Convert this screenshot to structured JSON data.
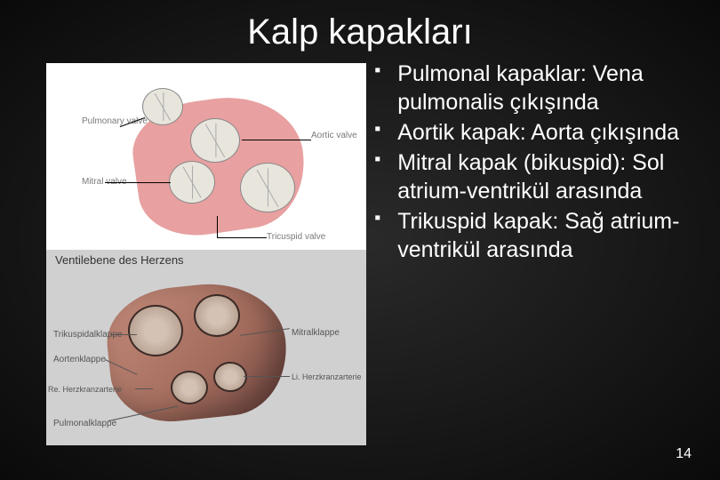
{
  "title": "Kalp kapakları",
  "bullets": [
    "Pulmonal kapaklar: Vena pulmonalis çıkışında",
    "Aortik kapak: Aorta çıkışında",
    "Mitral kapak (bikuspid): Sol atrium-ventrikül arasında",
    "Trikuspid kapak: Sağ atrium-ventrikül arasında"
  ],
  "page_number": "14",
  "top_diagram": {
    "labels": {
      "pulmonary": "Pulmonary valve",
      "aortic": "Aortic valve",
      "mitral": "Mitral valve",
      "tricuspid": "Tricuspid valve"
    },
    "colors": {
      "heart_fill": "#e8a0a0",
      "valve_fill": "#e8e5dd",
      "bg": "#ffffff"
    }
  },
  "bottom_diagram": {
    "title": "Ventilebene des Herzens",
    "labels": {
      "trikuspidal": "Trikuspidalklappe",
      "aorten": "Aortenklappe",
      "re_kranz": "Re. Herzkranzarterie",
      "pulmonal": "Pulmonalklappe",
      "mitral": "Mitralklappe",
      "li_kranz": "Li. Herzkranzarterie"
    },
    "colors": {
      "bg": "#d0d0d0",
      "heart_fill": "#a26b5c"
    }
  },
  "theme": {
    "background": "radial-gradient(#2a2a2a,#0a0a0a)",
    "text_color": "#ffffff",
    "title_fontsize": 40,
    "body_fontsize": 25
  }
}
